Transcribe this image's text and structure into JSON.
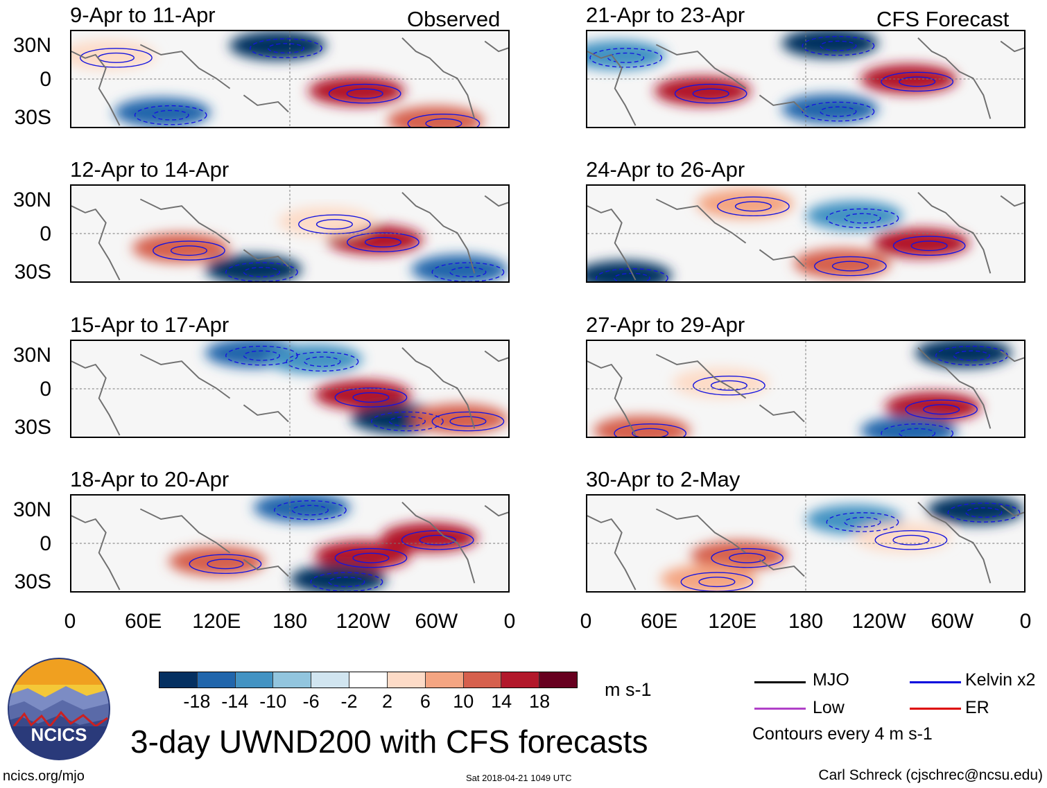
{
  "chart_data": {
    "type": "heatmap",
    "title": "3-day UWND200 with CFS forecasts",
    "variable": "UWND200",
    "units": "m s-1",
    "column_headers": {
      "observed": "Observed",
      "forecast": "CFS Forecast"
    },
    "x_ticks": [
      "0",
      "60E",
      "120E",
      "180",
      "120W",
      "60W",
      "0"
    ],
    "y_ticks": [
      "30N",
      "0",
      "30S"
    ],
    "colorbar_ticks": [
      "-18",
      "-14",
      "-10",
      "-6",
      "-2",
      "2",
      "6",
      "10",
      "14",
      "18"
    ],
    "colorbar_colors": [
      "#053061",
      "#2166ac",
      "#4393c3",
      "#92c5de",
      "#d1e5f0",
      "#ffffff",
      "#fddbc7",
      "#f4a582",
      "#d6604d",
      "#b2182b",
      "#67001f"
    ],
    "panels": [
      {
        "period": "9-Apr to 11-Apr",
        "type": "observed",
        "features": [
          {
            "lon": 235,
            "lat": -10,
            "value": 18
          },
          {
            "lon": 170,
            "lat": 28,
            "value": -18
          },
          {
            "lon": 75,
            "lat": -28,
            "value": -14
          },
          {
            "lon": 300,
            "lat": -35,
            "value": 14
          },
          {
            "lon": 30,
            "lat": 20,
            "value": 6
          }
        ]
      },
      {
        "period": "12-Apr to 14-Apr",
        "type": "observed",
        "features": [
          {
            "lon": 250,
            "lat": -5,
            "value": 18
          },
          {
            "lon": 150,
            "lat": -30,
            "value": -18
          },
          {
            "lon": 90,
            "lat": -12,
            "value": 14
          },
          {
            "lon": 210,
            "lat": 10,
            "value": 6
          },
          {
            "lon": 320,
            "lat": -30,
            "value": -14
          }
        ]
      },
      {
        "period": "15-Apr to 17-Apr",
        "type": "observed",
        "features": [
          {
            "lon": 240,
            "lat": -5,
            "value": 18
          },
          {
            "lon": 270,
            "lat": -25,
            "value": -18
          },
          {
            "lon": 150,
            "lat": 30,
            "value": -14
          },
          {
            "lon": 320,
            "lat": -25,
            "value": 14
          },
          {
            "lon": 200,
            "lat": 25,
            "value": -10
          }
        ]
      },
      {
        "period": "18-Apr to 20-Apr",
        "type": "observed",
        "features": [
          {
            "lon": 240,
            "lat": -10,
            "value": 18
          },
          {
            "lon": 295,
            "lat": 5,
            "value": 18
          },
          {
            "lon": 220,
            "lat": -30,
            "value": -18
          },
          {
            "lon": 190,
            "lat": 30,
            "value": -14
          },
          {
            "lon": 120,
            "lat": -15,
            "value": 14
          }
        ]
      },
      {
        "period": "21-Apr to 23-Apr",
        "type": "forecast",
        "features": [
          {
            "lon": 265,
            "lat": 0,
            "value": 18
          },
          {
            "lon": 95,
            "lat": -10,
            "value": 18
          },
          {
            "lon": 200,
            "lat": 30,
            "value": -18
          },
          {
            "lon": 25,
            "lat": 20,
            "value": -10
          },
          {
            "lon": 200,
            "lat": -25,
            "value": -14
          }
        ]
      },
      {
        "period": "24-Apr to 26-Apr",
        "type": "forecast",
        "features": [
          {
            "lon": 275,
            "lat": -8,
            "value": 18
          },
          {
            "lon": 210,
            "lat": -25,
            "value": 14
          },
          {
            "lon": 30,
            "lat": -35,
            "value": -18
          },
          {
            "lon": 130,
            "lat": 25,
            "value": 10
          },
          {
            "lon": 220,
            "lat": 15,
            "value": -10
          }
        ]
      },
      {
        "period": "27-Apr to 29-Apr",
        "type": "forecast",
        "features": [
          {
            "lon": 285,
            "lat": -15,
            "value": 18
          },
          {
            "lon": 310,
            "lat": 30,
            "value": -18
          },
          {
            "lon": 45,
            "lat": -35,
            "value": 14
          },
          {
            "lon": 110,
            "lat": 5,
            "value": 6
          },
          {
            "lon": 265,
            "lat": -35,
            "value": -14
          }
        ]
      },
      {
        "period": "30-Apr to 2-May",
        "type": "forecast",
        "features": [
          {
            "lon": 125,
            "lat": -10,
            "value": 14
          },
          {
            "lon": 320,
            "lat": 28,
            "value": -18
          },
          {
            "lon": 220,
            "lat": 20,
            "value": -10
          },
          {
            "lon": 100,
            "lat": -30,
            "value": 10
          },
          {
            "lon": 260,
            "lat": 5,
            "value": 6
          }
        ]
      }
    ],
    "legend": [
      {
        "label": "MJO",
        "color": "#000000"
      },
      {
        "label": "Kelvin x2",
        "color": "#0000dd"
      },
      {
        "label": "Low",
        "color": "#b040c8"
      },
      {
        "label": "ER",
        "color": "#dd0000"
      }
    ],
    "contour_note": "Contours every 4 m s-1"
  },
  "footer": {
    "logo_text": "NCICS",
    "url": "ncics.org/mjo",
    "timestamp": "Sat 2018-04-21 1049 UTC",
    "author": "Carl Schreck (cjschrec@ncsu.edu)"
  }
}
